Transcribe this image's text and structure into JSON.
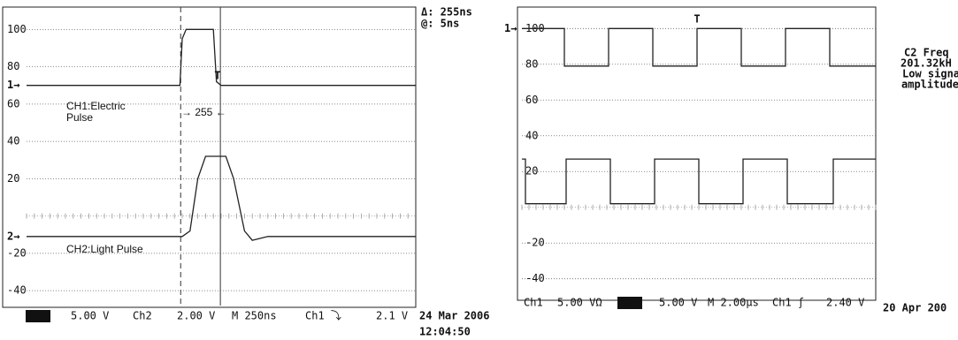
{
  "chart_data": [
    {
      "type": "line",
      "xlim": [
        0,
        2500
      ],
      "ylim": [
        -48,
        112
      ],
      "yticks": [
        100,
        80,
        60,
        40,
        20,
        -20,
        -40
      ],
      "grid": true,
      "cursors": [
        990,
        1245
      ],
      "series": [
        {
          "name": "CH1:Electric Pulse",
          "marker": "1→",
          "color": "#222",
          "x": [
            0,
            985,
            1000,
            1025,
            1200,
            1220,
            1250,
            2500
          ],
          "values": [
            70,
            70,
            95,
            100,
            100,
            72,
            70,
            70
          ]
        },
        {
          "name": "CH2:Light Pulse",
          "marker": "2→",
          "color": "#222",
          "x": [
            0,
            1000,
            1050,
            1100,
            1150,
            1280,
            1330,
            1400,
            1450,
            1550,
            2500
          ],
          "values": [
            -11,
            -11,
            -8,
            20,
            32,
            32,
            20,
            -8,
            -13,
            -11,
            -11
          ]
        }
      ],
      "annotations": [
        "Δ: 255ns",
        "@: 5ns",
        "→ 255 ←",
        "T"
      ],
      "status": [
        "Ch1",
        "5.00 V",
        "Ch2",
        "2.00 V",
        "M 250ns",
        "Ch1 ⤵",
        "2.1 V"
      ],
      "date": [
        "24 Mar 2006",
        "12:04:50"
      ]
    },
    {
      "type": "line",
      "xlim": [
        0,
        20
      ],
      "ylim": [
        -52,
        112
      ],
      "yticks": [
        100,
        80,
        60,
        40,
        20,
        -20,
        -40
      ],
      "grid": true,
      "series": [
        {
          "marker": "1→",
          "color": "#222",
          "x": [
            0,
            2.4,
            2.4,
            4.9,
            4.9,
            7.4,
            7.4,
            9.9,
            9.9,
            12.4,
            12.4,
            14.9,
            14.9,
            17.4,
            17.4,
            20
          ],
          "values": [
            100,
            100,
            79,
            79,
            100,
            100,
            79,
            79,
            100,
            100,
            79,
            79,
            100,
            100,
            79,
            79
          ]
        },
        {
          "color": "#222",
          "x": [
            0,
            0.2,
            0.2,
            2.5,
            2.5,
            5.0,
            5.0,
            7.5,
            7.5,
            10,
            10,
            12.5,
            12.5,
            15,
            15,
            17.6,
            17.6,
            20
          ],
          "values": [
            27,
            27,
            2,
            2,
            27,
            27,
            2,
            2,
            27,
            27,
            2,
            2,
            27,
            27,
            2,
            2,
            27,
            27
          ]
        }
      ],
      "annotations": [
        "T",
        "C2 Freq",
        "201.32kH",
        "Low signa",
        "amplitude"
      ],
      "status": [
        "Ch1",
        "5.00 VΩ",
        "Ch2",
        "5.00 V",
        "M 2.00µs",
        "Ch1 ƒ",
        "2.40 V"
      ],
      "date": [
        "20 Apr 200"
      ]
    }
  ]
}
